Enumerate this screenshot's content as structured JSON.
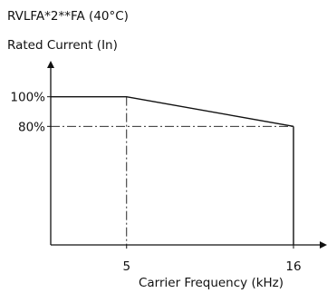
{
  "chart_data": {
    "type": "line",
    "title": "RVLFA*2**FA (40°C)",
    "ylabel": "Rated Current (In)",
    "xlabel": "Carrier Frequency (kHz)",
    "series": [
      {
        "x": [
          0,
          5,
          16
        ],
        "y": [
          100,
          100,
          80
        ]
      }
    ],
    "x_ticks": [
      {
        "value": 5,
        "label": "5"
      },
      {
        "value": 16,
        "label": "16"
      }
    ],
    "y_ticks": [
      {
        "value": 100,
        "label": "100%"
      },
      {
        "value": 80,
        "label": "80%"
      }
    ],
    "guides": {
      "x": 5,
      "y": 80
    },
    "xlim": [
      0,
      16
    ],
    "ylim": [
      0,
      120
    ],
    "grid": false,
    "legend": "none",
    "colors": {
      "line": "#111111",
      "axis": "#111111"
    }
  }
}
